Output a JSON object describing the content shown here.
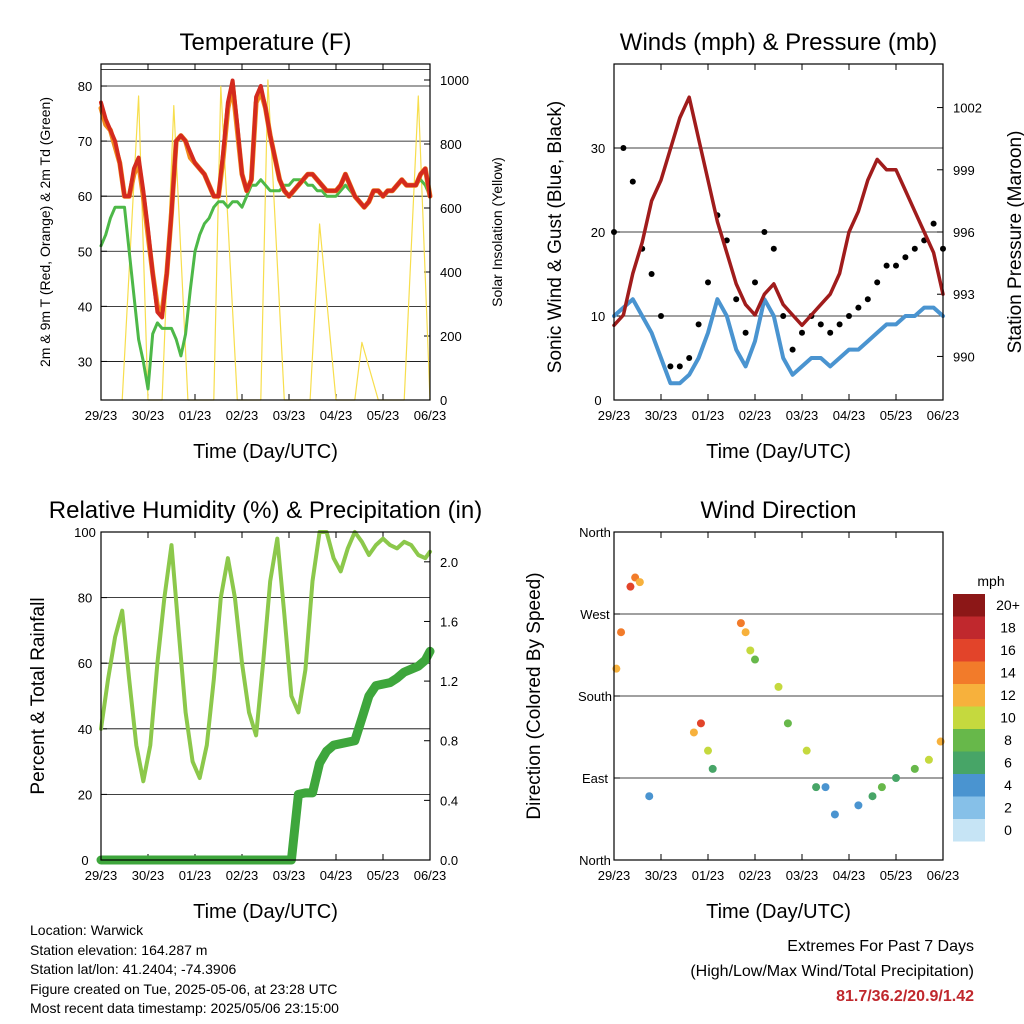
{
  "time_ticks": [
    "29/23",
    "30/23",
    "01/23",
    "02/23",
    "03/23",
    "04/23",
    "05/23",
    "06/23"
  ],
  "info": {
    "location": "Location: Warwick",
    "elevation": "Station elevation: 164.287 m",
    "latlon": "Station lat/lon: 41.2404; -74.3906",
    "created": "Figure created on Tue, 2025-05-06, at 23:28 UTC",
    "recent": "Most recent data timestamp: 2025/05/06 23:15:00"
  },
  "extremes": {
    "line1": "Extremes For Past 7 Days",
    "line2": "(High/Low/Max Wind/Total Precipitation)",
    "values": "81.7/36.2/20.9/1.42"
  },
  "colors": {
    "temp": "#d42a1e",
    "temp9m": "#f08a1c",
    "dewpoint": "#4db848",
    "solar": "#f7de4d",
    "wind": "#4a94d0",
    "gust": "#000000",
    "pressure": "#a01c1c",
    "rh": "#8cc84b",
    "precip": "#3ea63c"
  },
  "chart_data": [
    {
      "type": "line",
      "title": "Temperature (F)",
      "xlabel": "Time (Day/UTC)",
      "ylabel": "2m & 9m T (Red, Orange) & 2m Td (Green)",
      "y2label": "Solar Insolation (Yellow)",
      "ylim": [
        23,
        84
      ],
      "yticks": [
        30,
        40,
        50,
        60,
        70,
        80
      ],
      "y2lim": [
        0,
        1050
      ],
      "y2ticks": [
        0,
        200,
        400,
        600,
        800,
        1000
      ],
      "x": [
        0,
        0.1,
        0.2,
        0.3,
        0.4,
        0.5,
        0.6,
        0.7,
        0.8,
        0.9,
        1.0,
        1.1,
        1.2,
        1.3,
        1.4,
        1.5,
        1.6,
        1.7,
        1.8,
        1.9,
        2.0,
        2.1,
        2.2,
        2.3,
        2.4,
        2.5,
        2.6,
        2.7,
        2.8,
        2.9,
        3.0,
        3.1,
        3.2,
        3.3,
        3.4,
        3.5,
        3.6,
        3.7,
        3.8,
        3.9,
        4.0,
        4.1,
        4.2,
        4.3,
        4.4,
        4.5,
        4.6,
        4.7,
        4.8,
        4.9,
        5.0,
        5.1,
        5.2,
        5.3,
        5.4,
        5.5,
        5.6,
        5.7,
        5.8,
        5.9,
        6.0,
        6.1,
        6.2,
        6.3,
        6.4,
        6.5,
        6.6,
        6.7,
        6.8,
        6.9,
        7.0
      ],
      "series": [
        {
          "name": "2m T",
          "color_key": "temp",
          "values": [
            77,
            74,
            72,
            70,
            66,
            60,
            60,
            65,
            67,
            61,
            54,
            46,
            39,
            38,
            46,
            57,
            70,
            71,
            70,
            68,
            66,
            65,
            64,
            62,
            60,
            60,
            68,
            77,
            81,
            73,
            64,
            61,
            63,
            78,
            80,
            76,
            71,
            67,
            63,
            61,
            60,
            61,
            62,
            63,
            64,
            64,
            63,
            62,
            61,
            61,
            61,
            62,
            64,
            62,
            60,
            59,
            58,
            59,
            61,
            61,
            60,
            61,
            61,
            62,
            63,
            62,
            62,
            62,
            64,
            65,
            60
          ]
        },
        {
          "name": "9m T",
          "color_key": "temp9m",
          "values": [
            76,
            73,
            72,
            69,
            66,
            60,
            60,
            64,
            66,
            60,
            53,
            46,
            40,
            39,
            46,
            57,
            70,
            71,
            70,
            67,
            66,
            65,
            64,
            62,
            60,
            60,
            67,
            76,
            80,
            72,
            64,
            61,
            63,
            77,
            79,
            76,
            71,
            67,
            63,
            61,
            60,
            61,
            62,
            63,
            64,
            64,
            63,
            62,
            61,
            61,
            61,
            62,
            64,
            62,
            60,
            59,
            58,
            59,
            61,
            61,
            60,
            61,
            61,
            62,
            63,
            62,
            62,
            62,
            64,
            65,
            60
          ]
        },
        {
          "name": "2m Td",
          "color_key": "dewpoint",
          "values": [
            51,
            53,
            56,
            58,
            58,
            58,
            50,
            42,
            34,
            30,
            25,
            35,
            37,
            36,
            36,
            36,
            34,
            31,
            35,
            43,
            50,
            53,
            55,
            56,
            58,
            59,
            59,
            58,
            59,
            59,
            58,
            60,
            62,
            62,
            63,
            62,
            61,
            61,
            61,
            62,
            62,
            63,
            63,
            63,
            62,
            62,
            61,
            61,
            60,
            60,
            60,
            61,
            62,
            61,
            60,
            59,
            58,
            59,
            61,
            61,
            60,
            61,
            61,
            62,
            63,
            62,
            62,
            62,
            63,
            62,
            60
          ]
        }
      ],
      "solar": {
        "x": [
          0.45,
          0.8,
          1.0,
          1.3,
          1.55,
          1.85,
          2.05,
          2.4,
          2.55,
          2.9,
          3.05,
          3.4,
          3.55,
          3.9,
          4.05,
          4.45,
          4.65,
          5.0,
          5.1,
          5.4,
          5.55,
          5.9,
          6.1,
          6.45,
          6.75,
          7.0
        ],
        "values": [
          0,
          950,
          0,
          0,
          920,
          0,
          0,
          0,
          980,
          0,
          0,
          0,
          1000,
          0,
          0,
          0,
          550,
          0,
          0,
          0,
          180,
          0,
          0,
          0,
          950,
          0
        ]
      }
    },
    {
      "type": "scatter",
      "title": "Winds (mph) & Pressure (mb)",
      "xlabel": "Time (Day/UTC)",
      "ylabel": "Sonic Wind & Gust (Blue, Black)",
      "y2label": "Station Pressure (Maroon)",
      "ylim": [
        0,
        40
      ],
      "yticks": [
        0,
        10,
        20,
        30
      ],
      "y2lim": [
        987.9,
        1004.1
      ],
      "y2ticks": [
        990,
        993,
        996,
        999,
        1002
      ],
      "x": [
        0,
        0.2,
        0.4,
        0.6,
        0.8,
        1.0,
        1.2,
        1.4,
        1.6,
        1.8,
        2.0,
        2.2,
        2.4,
        2.6,
        2.8,
        3.0,
        3.2,
        3.4,
        3.6,
        3.8,
        4.0,
        4.2,
        4.4,
        4.6,
        4.8,
        5.0,
        5.2,
        5.4,
        5.6,
        5.8,
        6.0,
        6.2,
        6.4,
        6.6,
        6.8,
        7.0
      ],
      "series": [
        {
          "name": "Sonic Wind",
          "color_key": "wind",
          "values": [
            10,
            11,
            12,
            10,
            8,
            5,
            2,
            2,
            3,
            5,
            8,
            12,
            10,
            6,
            4,
            7,
            12,
            10,
            5,
            3,
            4,
            5,
            5,
            4,
            5,
            6,
            6,
            7,
            8,
            9,
            9,
            10,
            10,
            11,
            11,
            10
          ]
        },
        {
          "name": "Gust",
          "color_key": "gust",
          "values": [
            20,
            30,
            26,
            18,
            15,
            10,
            4,
            4,
            5,
            9,
            14,
            22,
            19,
            12,
            8,
            14,
            20,
            18,
            10,
            6,
            8,
            10,
            9,
            8,
            9,
            10,
            11,
            12,
            14,
            16,
            16,
            17,
            18,
            19,
            21,
            18
          ]
        },
        {
          "name": "Station Pressure",
          "color_key": "pressure",
          "values": [
            991.5,
            992.0,
            994.0,
            995.5,
            997.5,
            998.5,
            1000.0,
            1001.5,
            1002.5,
            1000.5,
            998.5,
            996.5,
            995.0,
            993.5,
            992.5,
            992.0,
            993.0,
            993.5,
            992.5,
            992.0,
            991.5,
            992.0,
            992.5,
            993.0,
            994.0,
            996.0,
            997.0,
            998.5,
            999.5,
            999.0,
            999.0,
            998.0,
            997.0,
            996.0,
            995.0,
            993.0
          ]
        }
      ]
    },
    {
      "type": "line",
      "title": "Relative Humidity (%) & Precipitation (in)",
      "xlabel": "Time (Day/UTC)",
      "ylabel": "Percent & Total Rainfall",
      "ylim": [
        0,
        100
      ],
      "yticks": [
        0,
        20,
        40,
        60,
        80,
        100
      ],
      "y2lim": [
        0,
        2.2
      ],
      "y2ticks": [
        0.0,
        0.4,
        0.8,
        1.2,
        1.6,
        2.0
      ],
      "x": [
        0,
        0.15,
        0.3,
        0.45,
        0.6,
        0.75,
        0.9,
        1.05,
        1.2,
        1.35,
        1.5,
        1.65,
        1.8,
        1.95,
        2.1,
        2.25,
        2.4,
        2.55,
        2.7,
        2.85,
        3.0,
        3.15,
        3.3,
        3.45,
        3.6,
        3.75,
        3.9,
        4.05,
        4.2,
        4.35,
        4.5,
        4.65,
        4.8,
        4.95,
        5.1,
        5.25,
        5.4,
        5.55,
        5.7,
        5.85,
        6.0,
        6.15,
        6.3,
        6.45,
        6.6,
        6.75,
        6.9,
        7.0
      ],
      "series": [
        {
          "name": "RH",
          "color_key": "rh",
          "values": [
            40,
            55,
            68,
            76,
            55,
            35,
            24,
            35,
            60,
            80,
            96,
            70,
            45,
            30,
            25,
            35,
            55,
            80,
            92,
            80,
            60,
            45,
            38,
            60,
            85,
            98,
            75,
            50,
            45,
            58,
            85,
            100,
            100,
            92,
            88,
            95,
            100,
            97,
            93,
            96,
            98,
            96,
            95,
            97,
            96,
            93,
            92,
            94
          ]
        },
        {
          "name": "Total Rainfall",
          "color_key": "precip",
          "values": [
            0,
            0,
            0,
            0,
            0,
            0,
            0,
            0,
            0,
            0,
            0,
            0,
            0,
            0,
            0,
            0,
            0,
            0,
            0,
            0,
            0,
            0,
            0,
            0,
            0,
            0,
            0,
            0,
            0.44,
            0.45,
            0.45,
            0.65,
            0.73,
            0.77,
            0.78,
            0.79,
            0.8,
            0.95,
            1.1,
            1.17,
            1.18,
            1.19,
            1.22,
            1.26,
            1.28,
            1.3,
            1.34,
            1.4
          ]
        }
      ]
    },
    {
      "type": "scatter",
      "title": "Wind Direction",
      "xlabel": "Time (Day/UTC)",
      "ylabel": "Direction (Colored By Speed)",
      "yticks": [
        "North",
        "East",
        "South",
        "West",
        "North"
      ],
      "ylim": [
        0,
        360
      ],
      "colorbar": {
        "label": "mph",
        "levels": [
          "0",
          "2",
          "4",
          "6",
          "8",
          "10",
          "12",
          "14",
          "16",
          "18",
          "20+"
        ],
        "colors": [
          "#c6e4f5",
          "#86c0e8",
          "#4a94d0",
          "#47a567",
          "#67b84a",
          "#c5d93e",
          "#f7b13c",
          "#f27b2a",
          "#e2442a",
          "#c0282d",
          "#8c1717"
        ]
      },
      "x": [
        0.05,
        0.15,
        0.35,
        0.45,
        0.55,
        0.75,
        1.7,
        1.85,
        2.0,
        2.1,
        2.7,
        2.8,
        2.9,
        3.0,
        3.5,
        3.7,
        4.1,
        4.3,
        4.5,
        4.7,
        5.2,
        5.5,
        5.7,
        6.0,
        6.4,
        6.7,
        6.95
      ],
      "values": [
        210,
        250,
        300,
        310,
        305,
        70,
        140,
        150,
        120,
        100,
        260,
        250,
        230,
        220,
        190,
        150,
        120,
        80,
        80,
        50,
        60,
        70,
        80,
        90,
        100,
        110,
        130
      ],
      "speed": [
        11,
        13,
        15,
        14,
        12,
        3,
        12,
        16,
        10,
        6,
        14,
        12,
        10,
        8,
        10,
        8,
        9,
        6,
        4,
        3,
        4,
        6,
        8,
        6,
        8,
        10,
        12
      ]
    }
  ]
}
